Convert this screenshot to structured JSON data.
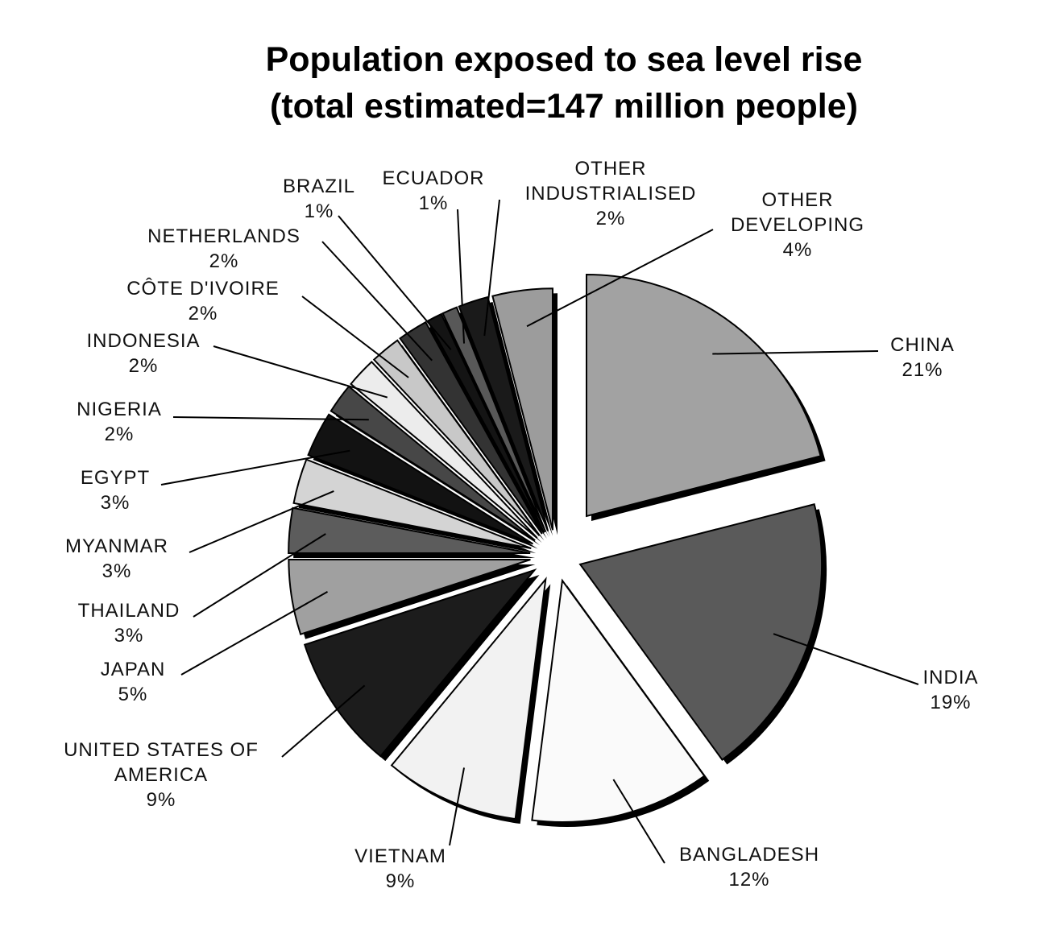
{
  "chart_data": {
    "type": "pie",
    "title": "Population exposed to sea level rise",
    "subtitle": "(total estimated=147 million people)",
    "categories": [
      "CHINA",
      "INDIA",
      "BANGLADESH",
      "VIETNAM",
      "UNITED STATES OF AMERICA",
      "JAPAN",
      "THAILAND",
      "MYANMAR",
      "EGYPT",
      "NIGERIA",
      "INDONESIA",
      "CÔTE D'IVOIRE",
      "NETHERLANDS",
      "BRAZIL",
      "ECUADOR",
      "OTHER INDUSTRIALISED",
      "OTHER DEVELOPING"
    ],
    "values": [
      21,
      19,
      12,
      9,
      9,
      5,
      3,
      3,
      3,
      2,
      2,
      2,
      2,
      1,
      1,
      2,
      4
    ],
    "value_labels": [
      "21%",
      "19%",
      "12%",
      "9%",
      "9%",
      "5%",
      "3%",
      "3%",
      "3%",
      "2%",
      "2%",
      "2%",
      "2%",
      "1%",
      "1%",
      "2%",
      "4%"
    ],
    "colors": [
      "#a2a2a2",
      "#5a5a5a",
      "#fafafa",
      "#f2f2f2",
      "#1c1c1c",
      "#a0a0a0",
      "#5c5c5c",
      "#d4d4d4",
      "#121212",
      "#474747",
      "#ececec",
      "#c8c8c8",
      "#333333",
      "#141414",
      "#585858",
      "#1a1a1a",
      "#9c9c9c"
    ]
  }
}
